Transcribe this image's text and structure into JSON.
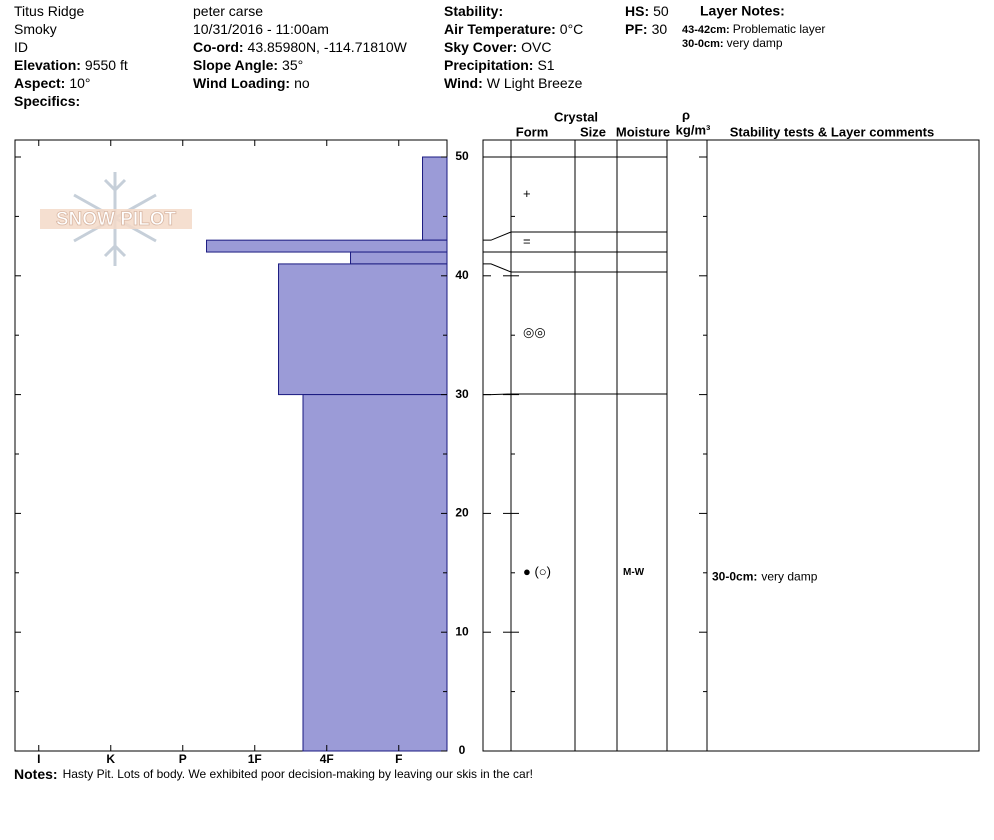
{
  "header": {
    "columns": [
      [
        {
          "value": "Titus Ridge"
        },
        {
          "value": "Smoky"
        },
        {
          "value": "ID"
        },
        {
          "label": "Elevation:",
          "value": "9550 ft"
        },
        {
          "label": "Aspect:",
          "value": "10°"
        },
        {
          "label": "Specifics:"
        }
      ],
      [
        {
          "value": "peter carse"
        },
        {
          "value": "10/31/2016 - 11:00am"
        },
        {
          "label": "Co-ord:",
          "value": "43.85980N, -114.71810W"
        },
        {
          "label": "Slope Angle:",
          "value": "35°"
        },
        {
          "label": "Wind Loading:",
          "value": "no"
        }
      ],
      [
        {
          "label": "Stability:"
        },
        {
          "label": "Air Temperature:",
          "value": "0°C"
        },
        {
          "label": "Sky Cover:",
          "value": "OVC"
        },
        {
          "label": "Precipitation:",
          "value": "S1"
        },
        {
          "label": "Wind:",
          "value": "W Light Breeze"
        }
      ],
      [
        {
          "label": "HS:",
          "value": "50"
        },
        {
          "label": "PF:",
          "value": "30"
        }
      ]
    ],
    "layer_notes_title": "Layer Notes:",
    "layer_notes": [
      {
        "depth": "43-42cm:",
        "text": "Problematic layer"
      },
      {
        "depth": "30-0cm:",
        "text": "very damp"
      }
    ]
  },
  "logo": "SNOW PILOT",
  "table_headers": {
    "crystal": "Crystal",
    "form": "Form",
    "size": "Size",
    "moisture": "Moisture",
    "density": "ρ",
    "density_unit": "kg/m³",
    "comments": "Stability tests & Layer comments"
  },
  "chart_data": {
    "type": "hardness-profile",
    "ylim": [
      0,
      50
    ],
    "yticks": [
      0,
      10,
      20,
      30,
      40,
      50
    ],
    "minor_yticks": [
      5,
      15,
      25,
      35,
      45
    ],
    "xlim": [
      6.33,
      0.33
    ],
    "xticks": [
      {
        "value": 6,
        "label": "I"
      },
      {
        "value": 5,
        "label": "K"
      },
      {
        "value": 4,
        "label": "P"
      },
      {
        "value": 3,
        "label": "1F"
      },
      {
        "value": 2,
        "label": "4F"
      },
      {
        "value": 1,
        "label": "F"
      }
    ],
    "color": "#9b9bd7",
    "layers": [
      {
        "top": 50,
        "bottom": 43,
        "hardness": 0.67,
        "form": "+"
      },
      {
        "top": 43,
        "bottom": 42,
        "hardness": 3.67,
        "form": "="
      },
      {
        "top": 42,
        "bottom": 41,
        "hardness": 1.67
      },
      {
        "top": 41,
        "bottom": 30,
        "hardness": 2.67,
        "form": "◎◎"
      },
      {
        "top": 30,
        "bottom": 0,
        "hardness": 2.33,
        "form": "● (○)",
        "moisture": "M-W",
        "comment_depth": "30-0cm:",
        "comment": "very damp"
      }
    ]
  },
  "notes": {
    "label": "Notes:",
    "text": "Hasty Pit. Lots of body. We exhibited poor decision-making by leaving our skis in the car!"
  }
}
